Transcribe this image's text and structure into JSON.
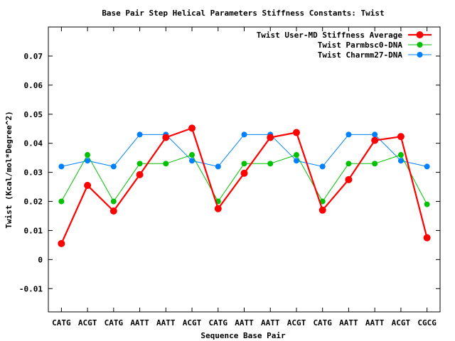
{
  "chart_data": {
    "type": "line",
    "title": "Base Pair Step Helical Parameters Stiffness Constants: Twist",
    "xlabel": "Sequence Base Pair",
    "ylabel": "Twist (Kcal/mol*Degree^2)",
    "categories": [
      "CATG",
      "ACGT",
      "CATG",
      "AATT",
      "AATT",
      "ACGT",
      "CATG",
      "AATT",
      "AATT",
      "ACGT",
      "CATG",
      "AATT",
      "AATT",
      "ACGT",
      "CGCG"
    ],
    "ylim": [
      -0.018,
      0.08
    ],
    "yticks": [
      -0.01,
      0,
      0.01,
      0.02,
      0.03,
      0.04,
      0.05,
      0.06,
      0.07
    ],
    "ytick_labels": [
      "-0.01",
      "0",
      "0.01",
      "0.02",
      "0.03",
      "0.04",
      "0.05",
      "0.06",
      "0.07"
    ],
    "legend_position": "top-right",
    "grid": false,
    "series": [
      {
        "name": "Twist User-MD Stiffness Average",
        "color": "#ff0000",
        "line_width": 2.2,
        "marker_radius": 5,
        "values": [
          0.0055,
          0.0255,
          0.0167,
          0.0292,
          0.042,
          0.0452,
          0.0175,
          0.0297,
          0.042,
          0.0437,
          0.017,
          0.0275,
          0.041,
          0.0423,
          0.0075
        ]
      },
      {
        "name": "Twist Parmbsc0-DNA",
        "color": "#00c000",
        "line_width": 1,
        "marker_radius": 4,
        "values": [
          0.02,
          0.036,
          0.02,
          0.033,
          0.033,
          0.036,
          0.02,
          0.033,
          0.033,
          0.036,
          0.02,
          0.033,
          0.033,
          0.036,
          0.019
        ]
      },
      {
        "name": "Twist Charmm27-DNA",
        "color": "#0080ff",
        "line_width": 1,
        "marker_radius": 4,
        "values": [
          0.032,
          0.034,
          0.032,
          0.043,
          0.043,
          0.034,
          0.032,
          0.043,
          0.043,
          0.034,
          0.032,
          0.043,
          0.043,
          0.034,
          0.032
        ]
      }
    ]
  }
}
